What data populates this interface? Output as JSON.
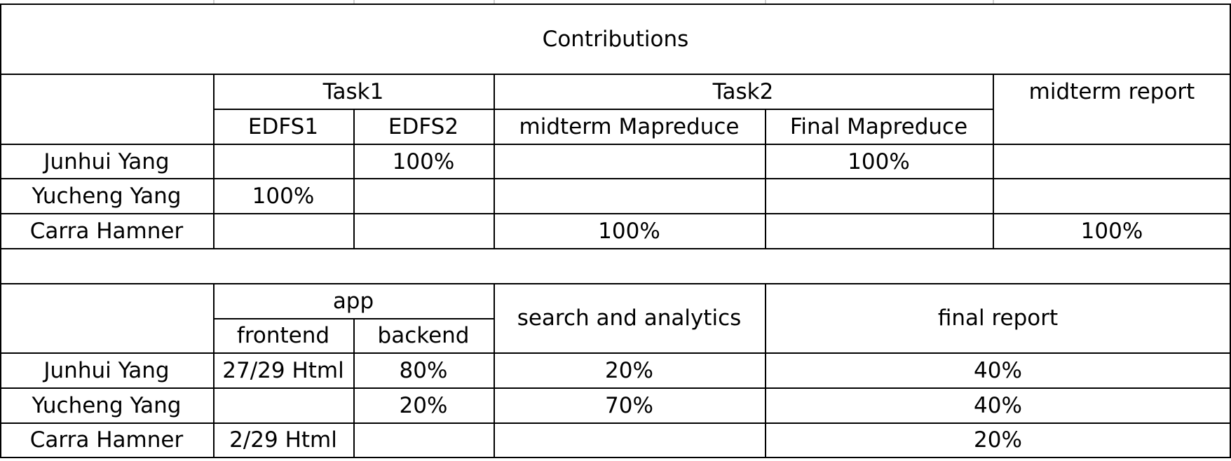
{
  "title": "Contributions",
  "table1": {
    "group_headers": {
      "task1": "Task1",
      "task2": "Task2",
      "midterm_report": "midterm report"
    },
    "sub_headers": {
      "edfs1": "EDFS1",
      "edfs2": "EDFS2",
      "midterm_mapreduce": "midterm Mapreduce",
      "final_mapreduce": "Final Mapreduce"
    },
    "rows": [
      {
        "name": "Junhui Yang",
        "edfs1": "",
        "edfs2": "100%",
        "midterm_mapreduce": "",
        "final_mapreduce": "100%",
        "midterm_report": ""
      },
      {
        "name": "Yucheng Yang",
        "edfs1": "100%",
        "edfs2": "",
        "midterm_mapreduce": "",
        "final_mapreduce": "",
        "midterm_report": ""
      },
      {
        "name": "Carra Hamner",
        "edfs1": "",
        "edfs2": "",
        "midterm_mapreduce": "100%",
        "final_mapreduce": "",
        "midterm_report": "100%"
      }
    ]
  },
  "table2": {
    "group_headers": {
      "app": "app",
      "search_analytics": "search and analytics",
      "final_report": "final report"
    },
    "sub_headers": {
      "frontend": "frontend",
      "backend": "backend"
    },
    "rows": [
      {
        "name": "Junhui Yang",
        "frontend": "27/29 Html",
        "backend": "80%",
        "search_analytics": "20%",
        "final_report": "40%"
      },
      {
        "name": "Yucheng Yang",
        "frontend": "",
        "backend": "20%",
        "search_analytics": "70%",
        "final_report": "40%"
      },
      {
        "name": "Carra Hamner",
        "frontend": "2/29 Html",
        "backend": "",
        "search_analytics": "",
        "final_report": "20%"
      }
    ]
  }
}
